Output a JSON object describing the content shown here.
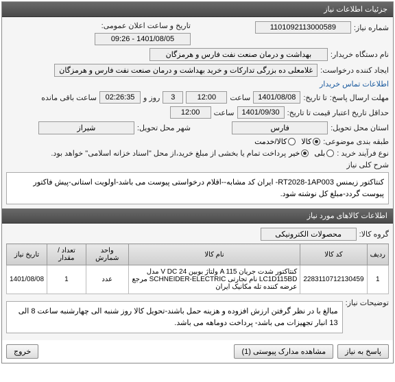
{
  "header1": "جزئیات اطلاعات نیاز",
  "need_number_lbl": "شماره نیاز:",
  "need_number": "1101092113000589",
  "announce_lbl": "تاریخ و ساعت اعلان عمومی:",
  "announce_val": "1401/08/05 - 09:26",
  "buyer_org_lbl": "نام دستگاه خریدار:",
  "buyer_org": "بهداشت و درمان صنعت نفت فارس و هرمزگان",
  "creator_lbl": "ایجاد کننده درخواست:",
  "creator": "غلامعلی ده بزرگی تدارکات و خرید بهداشت و درمان صنعت نفت فارس و هرمزگان",
  "contact_link": "اطلاعات تماس خریدار",
  "send_deadline_lbl": "مهلت ارسال پاسخ:",
  "send_until_lbl": "تا تاریخ:",
  "send_date": "1401/08/08",
  "time_lbl": "ساعت",
  "send_time": "12:00",
  "rooz_lbl": "روز و",
  "rooz_val": "3",
  "remain_lbl": "ساعت باقی مانده",
  "remain_val": "02:26:35",
  "credit_lbl": "حداقل تاریخ اعتبار قیمت تا تاریخ:",
  "credit_date": "1401/09/30",
  "credit_time": "12:00",
  "province_lbl": "استان محل تحویل:",
  "province": "فارس",
  "city_lbl": "شهر محل تحویل:",
  "city": "شیراز",
  "pack_lbl": "طبقه بندی موضوعی:",
  "pack_opts": [
    "کالا",
    "کالا/خدمت"
  ],
  "pack_sel": 0,
  "buy_type_lbl": "نوع فرآیند خرید :",
  "buy_note": "پرداخت تمام یا بخشی از مبلغ خرید،از محل \"اسناد خزانه اسلامی\" خواهد بود.",
  "buy_opts": [
    "بلی",
    "خیر"
  ],
  "buy_sel": 1,
  "desc_lbl": "شرح کلی نیاز",
  "desc_text": "کنتاکتور زیمنس RT2028-1AP003- ایران کد مشابه--اقلام درخواستی پیوست می باشد-اولویت استانی-پیش فاکتور پیوست گردد-مبلغ کل نوشته شود.",
  "header2": "اطلاعات کالاهای مورد نیاز",
  "group_lbl": "گروه کالا:",
  "group_val": "محصولات الکترونیکی",
  "cols": [
    "ردیف",
    "کد کالا",
    "نام کالا",
    "واحد شمارش",
    "تعداد / مقدار",
    "تاریخ نیاز"
  ],
  "rows": [
    [
      "1",
      "2283110712130459",
      "کنتاکتور شدت جریان A 115 ولتاژ بوبین V DC 24 مدل LC1D115BD نام تجارتی SCHNEIDER-ELECTRIC مرجع عرضه کننده تله مکانیک ایران",
      "عدد",
      "1",
      "1401/08/08"
    ]
  ],
  "notes_lbl": "توضیحات نیاز:",
  "notes_text": "مبالغ با در نظر گرفتن ارزش افزوده و هزینه حمل باشند-تحویل کالا روز شنبه الی چهارشنبه ساعت 8 الی 13 انبار تجهیزات می باشد- پرداخت دوماهه می باشد.",
  "btn_reply": "پاسخ به نیاز",
  "btn_attach": "مشاهده مدارک پیوستی (1)",
  "btn_close": "خروج",
  "colors": {
    "header_bg": "#555",
    "link": "#1a5a9e"
  }
}
